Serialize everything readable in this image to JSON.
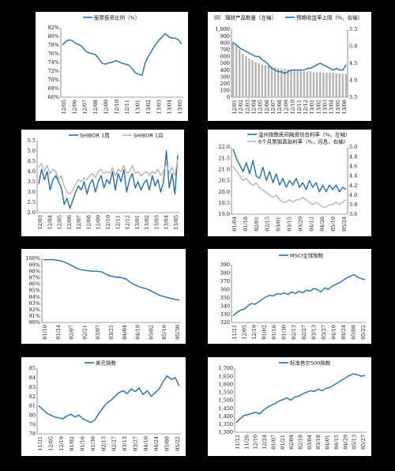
{
  "chart_data": [
    {
      "id": "p1",
      "type": "line",
      "legend": [
        {
          "name": "股票投资比例（%）",
          "color": "#1f6fb4"
        }
      ],
      "yticks": [
        "82%",
        "80%",
        "78%",
        "76%",
        "74%",
        "72%",
        "70%",
        "68%",
        "66%"
      ],
      "ylim": [
        66,
        82
      ],
      "xticks": [
        "12/05",
        "12/06",
        "12/07",
        "12/08",
        "12/09",
        "12/10",
        "12/11",
        "13/01",
        "13/02",
        "13/03",
        "13/04",
        "13/05"
      ],
      "series": [
        {
          "name": "股票投资比例（%）",
          "color": "#1f6fb4",
          "values": [
            78.0,
            78.8,
            79.2,
            79.0,
            78.4,
            78.1,
            77.6,
            76.6,
            76.2,
            76.0,
            75.8,
            74.8,
            73.8,
            73.6,
            73.9,
            74.0,
            74.4,
            74.2,
            73.8,
            73.6,
            73.4,
            72.6,
            71.6,
            71.3,
            71.0,
            74.0,
            75.5,
            76.8,
            78.0,
            79.0,
            79.8,
            80.6,
            80.0,
            79.6,
            79.6,
            79.2,
            78.2
          ]
        }
      ]
    },
    {
      "id": "p2",
      "type": "bar+line",
      "legend": [
        {
          "name": "理财产品数量（左轴）",
          "color": "#b5b5b5",
          "kind": "bar"
        },
        {
          "name": "预期收益率上限（%，右轴）",
          "color": "#1f6fb4",
          "kind": "line"
        }
      ],
      "yticks": [
        "1,000",
        "900",
        "800",
        "700",
        "600",
        "500",
        "400",
        "300",
        "200",
        "100",
        "0"
      ],
      "ylim": [
        0,
        1000
      ],
      "y2ticks": [
        "5.5",
        "5.0",
        "4.5",
        "4.0",
        "3.5"
      ],
      "y2lim": [
        3.5,
        5.5
      ],
      "xticks": [
        "12/01",
        "12/02",
        "12/03",
        "12/04",
        "12/05",
        "12/06",
        "12/07",
        "12/08",
        "12/09",
        "12/10",
        "12/11",
        "12/12",
        "13/01",
        "13/02",
        "13/03",
        "13/04",
        "13/05",
        "13/06"
      ],
      "bars": [
        820,
        760,
        700,
        640,
        600,
        570,
        550,
        520,
        500,
        480,
        470,
        460,
        450,
        440,
        430,
        420,
        420,
        410,
        400,
        400,
        390,
        390,
        380,
        380,
        380,
        370,
        370,
        370,
        360,
        360,
        360,
        360,
        350,
        350,
        340,
        340
      ],
      "series": [
        {
          "name": "预期收益率上限（%，右轴）",
          "color": "#1f6fb4",
          "values": [
            5.1,
            5.05,
            4.95,
            4.9,
            4.85,
            4.8,
            4.75,
            4.7,
            4.7,
            4.6,
            4.55,
            4.45,
            4.35,
            4.3,
            4.25,
            4.25,
            4.2,
            4.25,
            4.3,
            4.3,
            4.3,
            4.3,
            4.3,
            4.35,
            4.35,
            4.4,
            4.45,
            4.5,
            4.45,
            4.4,
            4.35,
            4.3,
            4.35,
            4.3,
            4.3,
            4.45
          ]
        }
      ]
    },
    {
      "id": "p3",
      "type": "line",
      "legend": [
        {
          "name": "SHIBOR 1周",
          "color": "#1f6fb4"
        },
        {
          "name": "SHIBOR 1月",
          "color": "#b5b5b5"
        }
      ],
      "yticks": [
        "5.5",
        "5.0",
        "4.5",
        "4.0",
        "3.5",
        "3.0",
        "2.5",
        "2.0"
      ],
      "ylim": [
        2.0,
        5.5
      ],
      "xticks": [
        "12/03",
        "12/04",
        "12/05",
        "12/06",
        "12/07",
        "12/08",
        "12/09",
        "12/10",
        "12/11",
        "12/12",
        "13/01",
        "13/02",
        "13/03",
        "13/04",
        "13/05"
      ],
      "series": [
        {
          "name": "SHIBOR 1周",
          "color": "#1f6fb4",
          "values": [
            3.4,
            4.1,
            3.6,
            4.0,
            3.1,
            3.6,
            3.8,
            3.5,
            3.2,
            2.4,
            2.7,
            2.2,
            2.6,
            3.0,
            3.3,
            3.1,
            3.5,
            2.9,
            3.4,
            3.6,
            3.0,
            3.5,
            3.8,
            3.2,
            3.6,
            3.4,
            4.0,
            3.1,
            3.9,
            3.5,
            4.1,
            3.0,
            3.6,
            3.9,
            3.2,
            3.5,
            3.1,
            3.4,
            3.6,
            3.1,
            3.8,
            3.3,
            3.6,
            3.0,
            3.5,
            5.0,
            3.2,
            3.9,
            2.9,
            4.8
          ]
        },
        {
          "name": "SHIBOR 1月",
          "color": "#b5b5b5",
          "values": [
            4.2,
            4.4,
            4.0,
            4.3,
            3.9,
            4.1,
            4.0,
            3.6,
            3.8,
            3.3,
            3.0,
            2.9,
            3.1,
            3.4,
            3.6,
            3.5,
            3.7,
            3.6,
            3.8,
            3.9,
            3.7,
            4.0,
            4.1,
            3.9,
            4.0,
            3.9,
            4.2,
            3.8,
            4.1,
            4.0,
            4.3,
            3.9,
            4.0,
            4.3,
            3.9,
            4.0,
            3.8,
            3.9,
            4.0,
            3.8,
            4.0,
            3.9,
            4.1,
            3.8,
            4.0,
            4.4,
            3.9,
            4.2,
            3.8,
            4.6
          ]
        }
      ]
    },
    {
      "id": "p4",
      "type": "line",
      "legend": [
        {
          "name": "温州指数民间融资综合利率（%，左轴）",
          "color": "#1f6fb4"
        },
        {
          "name": "6个月票据直贴利率（%，月息，右轴）",
          "color": "#b5b5b5"
        }
      ],
      "yticks": [
        "22.0",
        "21.5",
        "21.0",
        "20.5",
        "20.0",
        "19.5",
        "19.0"
      ],
      "ylim": [
        19.0,
        22.0
      ],
      "y2ticks": [
        "5.0",
        "4.8",
        "4.6",
        "4.4",
        "4.2",
        "4.0",
        "3.8",
        "3.6"
      ],
      "y2lim": [
        3.6,
        5.0
      ],
      "xticks": [
        "01/04",
        "01/18",
        "02/01",
        "02/15",
        "03/01",
        "03/15",
        "03/29",
        "04/12",
        "04/26",
        "05/10",
        "05/24"
      ],
      "series": [
        {
          "name": "温州指数民间融资综合利率（%，左轴）",
          "color": "#1f6fb4",
          "values": [
            21.9,
            21.5,
            21.2,
            20.9,
            21.3,
            20.8,
            21.4,
            20.7,
            20.6,
            21.1,
            20.5,
            20.9,
            20.4,
            20.8,
            20.3,
            20.6,
            20.2,
            20.5,
            20.3,
            20.6,
            20.2,
            20.4,
            20.1,
            20.5,
            20.2,
            20.4,
            20.0,
            20.3,
            20.0,
            20.3,
            20.1,
            20.3,
            20.0,
            20.2,
            20.1
          ]
        },
        {
          "name": "6个月票据直贴利率（%，月息，右轴）",
          "color": "#b5b5b5",
          "values": [
            4.6,
            4.5,
            4.4,
            4.3,
            4.35,
            4.25,
            4.2,
            4.25,
            4.15,
            4.1,
            4.05,
            4.0,
            3.95,
            4.0,
            3.9,
            3.85,
            3.85,
            3.9,
            3.85,
            3.9,
            3.9,
            3.95,
            3.9,
            3.85,
            3.8,
            3.85,
            3.8,
            3.75,
            3.75,
            3.8,
            3.8,
            3.85,
            3.8,
            3.85,
            3.9
          ]
        }
      ]
    },
    {
      "id": "p5",
      "type": "line",
      "legend": [],
      "yticks": [
        "100%",
        "99%",
        "98%",
        "97%",
        "96%",
        "95%",
        "94%",
        "93%",
        "92%",
        "91%",
        "90%"
      ],
      "ylim": [
        90,
        100
      ],
      "xticks": [
        "01/10",
        "01/24",
        "02/07",
        "02/21",
        "03/07",
        "03/21",
        "04/04",
        "04/18",
        "05/02",
        "05/16",
        "05/30"
      ],
      "series": [
        {
          "name": "",
          "color": "#1f6fb4",
          "values": [
            99.8,
            99.8,
            99.8,
            99.7,
            99.5,
            99.2,
            98.8,
            98.4,
            98.2,
            98.1,
            98.0,
            98.0,
            97.9,
            97.5,
            97.2,
            97.1,
            97.0,
            96.8,
            96.2,
            95.8,
            95.5,
            95.3,
            95.0,
            94.6,
            94.2,
            94.0,
            93.8,
            93.6,
            93.5
          ]
        }
      ]
    },
    {
      "id": "p6",
      "type": "line",
      "legend": [
        {
          "name": "MSCI全球指数",
          "color": "#1f6fb4"
        }
      ],
      "yticks": [
        "390",
        "380",
        "370",
        "360",
        "350",
        "340",
        "330",
        "320"
      ],
      "ylim": [
        320,
        390
      ],
      "xticks": [
        "11/21",
        "12/05",
        "12/19",
        "01/02",
        "01/16",
        "01/30",
        "02/13",
        "02/27",
        "03/13",
        "03/27",
        "04/10",
        "04/24",
        "05/08",
        "05/22"
      ],
      "series": [
        {
          "name": "MSCI全球指数",
          "color": "#1f6fb4",
          "values": [
            328,
            332,
            335,
            336,
            340,
            343,
            342,
            345,
            348,
            351,
            353,
            352,
            355,
            354,
            356,
            354,
            357,
            355,
            358,
            356,
            359,
            358,
            361,
            360,
            357,
            362,
            360,
            364,
            366,
            368,
            371,
            374,
            376,
            378,
            375,
            373,
            372
          ]
        }
      ]
    },
    {
      "id": "p7",
      "type": "line",
      "legend": [
        {
          "name": "美元指数",
          "color": "#1f6fb4"
        }
      ],
      "yticks": [
        "85",
        "84",
        "83",
        "82",
        "81",
        "80",
        "79",
        "78"
      ],
      "ylim": [
        78,
        85
      ],
      "xticks": [
        "11/21",
        "12/05",
        "12/19",
        "01/02",
        "01/16",
        "01/30",
        "02/13",
        "02/27",
        "03/13",
        "03/27",
        "04/10",
        "04/24",
        "05/08",
        "05/22"
      ],
      "series": [
        {
          "name": "美元指数",
          "color": "#1f6fb4",
          "values": [
            81.0,
            80.6,
            80.2,
            80.0,
            79.8,
            79.7,
            79.6,
            79.9,
            80.1,
            79.8,
            80.0,
            79.6,
            79.4,
            79.2,
            79.5,
            80.2,
            80.8,
            81.3,
            81.6,
            82.0,
            82.4,
            82.6,
            82.3,
            82.8,
            82.5,
            82.9,
            82.2,
            82.6,
            82.0,
            82.4,
            82.8,
            83.6,
            84.2,
            83.8,
            84.0,
            83.1
          ]
        }
      ]
    },
    {
      "id": "p8",
      "type": "line",
      "legend": [
        {
          "name": "标准普尔500指数",
          "color": "#1f6fb4"
        }
      ],
      "yticks": [
        "1,700",
        "1,650",
        "1,600",
        "1,550",
        "1,500",
        "1,450",
        "1,400",
        "1,350",
        "1,300"
      ],
      "ylim": [
        1300,
        1700
      ],
      "xticks": [
        "11/12",
        "11/26",
        "12/10",
        "12/24",
        "01/07",
        "01/21",
        "02/04",
        "02/18",
        "03/04",
        "03/18",
        "04/01",
        "04/15",
        "04/29",
        "05/13",
        "05/27"
      ],
      "series": [
        {
          "name": "标准普尔500指数",
          "color": "#1f6fb4",
          "values": [
            1360,
            1385,
            1405,
            1410,
            1418,
            1425,
            1415,
            1440,
            1455,
            1470,
            1480,
            1495,
            1505,
            1515,
            1500,
            1520,
            1525,
            1540,
            1550,
            1560,
            1555,
            1570,
            1560,
            1575,
            1580,
            1595,
            1610,
            1625,
            1640,
            1655,
            1665,
            1660,
            1650,
            1655
          ]
        }
      ]
    }
  ]
}
